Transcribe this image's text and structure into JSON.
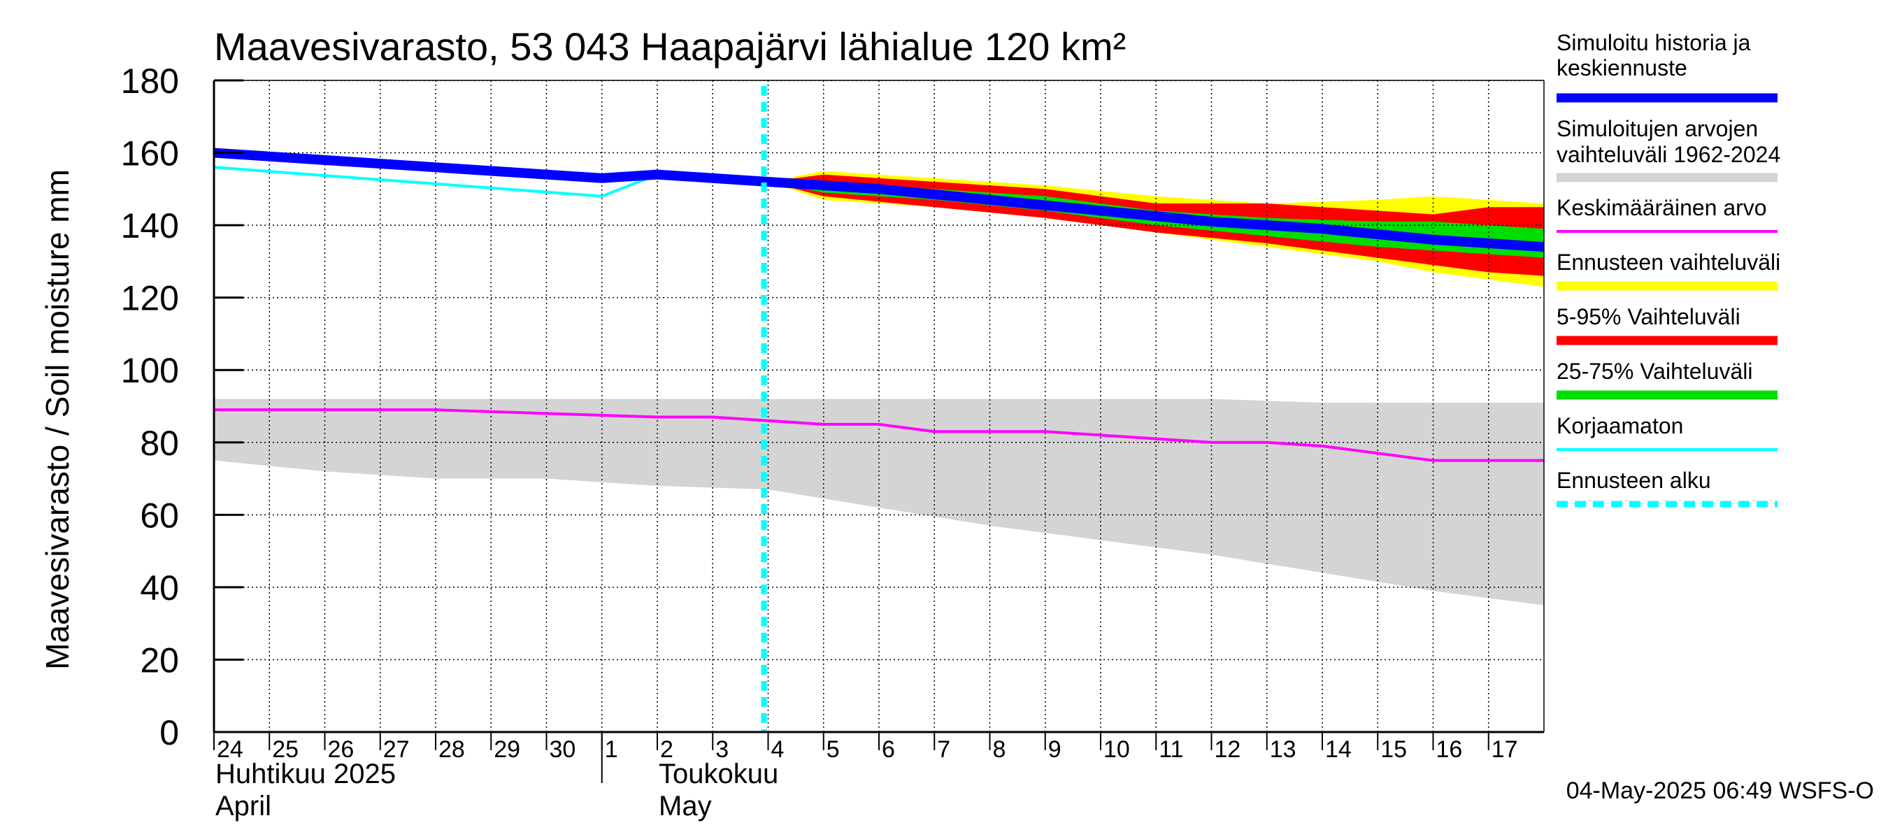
{
  "chart_data": {
    "type": "area",
    "title": "Maavesivarasto, 53 043 Haapajärvi lähialue 120 km²",
    "ylabel": "Maavesivarasto / Soil moisture   mm",
    "ylim": [
      0,
      180
    ],
    "yticks": [
      0,
      20,
      40,
      60,
      80,
      100,
      120,
      140,
      160,
      180
    ],
    "grid": true,
    "legend_position": "right",
    "x_start": "2025-04-24",
    "x_end": "2025-05-18",
    "day_ticks": [
      {
        "date": "2025-04-24",
        "label": "24"
      },
      {
        "date": "2025-04-25",
        "label": "25"
      },
      {
        "date": "2025-04-26",
        "label": "26"
      },
      {
        "date": "2025-04-27",
        "label": "27"
      },
      {
        "date": "2025-04-28",
        "label": "28"
      },
      {
        "date": "2025-04-29",
        "label": "29"
      },
      {
        "date": "2025-04-30",
        "label": "30"
      },
      {
        "date": "2025-05-01",
        "label": "1"
      },
      {
        "date": "2025-05-02",
        "label": "2"
      },
      {
        "date": "2025-05-03",
        "label": "3"
      },
      {
        "date": "2025-05-04",
        "label": "4"
      },
      {
        "date": "2025-05-05",
        "label": "5"
      },
      {
        "date": "2025-05-06",
        "label": "6"
      },
      {
        "date": "2025-05-07",
        "label": "7"
      },
      {
        "date": "2025-05-08",
        "label": "8"
      },
      {
        "date": "2025-05-09",
        "label": "9"
      },
      {
        "date": "2025-05-10",
        "label": "10"
      },
      {
        "date": "2025-05-11",
        "label": "11"
      },
      {
        "date": "2025-05-12",
        "label": "12"
      },
      {
        "date": "2025-05-13",
        "label": "13"
      },
      {
        "date": "2025-05-14",
        "label": "14"
      },
      {
        "date": "2025-05-15",
        "label": "15"
      },
      {
        "date": "2025-05-16",
        "label": "16"
      },
      {
        "date": "2025-05-17",
        "label": "17"
      }
    ],
    "month_labels": [
      {
        "date": "2025-04-24",
        "fi": "Huhtikuu  2025",
        "en": "April"
      },
      {
        "date": "2025-05-02",
        "fi": "Toukokuu",
        "en": "May"
      }
    ],
    "month_divider": "2025-05-01",
    "forecast_start": "2025-05-04",
    "series": [
      {
        "name": "Simuloitujen arvojen vaihteluväli 1962-2024",
        "kind": "band",
        "color": "#d4d4d4",
        "x": [
          "2025-04-24",
          "2025-04-26",
          "2025-04-28",
          "2025-04-30",
          "2025-05-02",
          "2025-05-04",
          "2025-05-06",
          "2025-05-08",
          "2025-05-10",
          "2025-05-12",
          "2025-05-14",
          "2025-05-16",
          "2025-05-18"
        ],
        "upper": [
          92,
          92,
          92,
          92,
          92,
          92,
          92,
          92,
          92,
          92,
          91,
          91,
          91
        ],
        "lower": [
          75,
          72,
          70,
          70,
          68,
          67,
          62,
          57,
          53,
          49,
          44,
          39,
          35
        ]
      },
      {
        "name": "Ennusteen vaihteluväli",
        "kind": "band",
        "color": "#ffff00",
        "x": [
          "2025-05-04",
          "2025-05-05",
          "2025-05-07",
          "2025-05-09",
          "2025-05-11",
          "2025-05-13",
          "2025-05-15",
          "2025-05-16",
          "2025-05-17",
          "2025-05-18"
        ],
        "upper": [
          152,
          155,
          153,
          151,
          148,
          146,
          147,
          148,
          147,
          146
        ],
        "lower": [
          152,
          147,
          145,
          142,
          138,
          134,
          130,
          127,
          125,
          123
        ]
      },
      {
        "name": "5-95% Vaihteluväli",
        "kind": "band",
        "color": "#ff0000",
        "x": [
          "2025-05-04",
          "2025-05-05",
          "2025-05-07",
          "2025-05-09",
          "2025-05-11",
          "2025-05-13",
          "2025-05-15",
          "2025-05-16",
          "2025-05-17",
          "2025-05-18"
        ],
        "upper": [
          152,
          154,
          152,
          150,
          146,
          146,
          144,
          143,
          145,
          145
        ],
        "lower": [
          152,
          148,
          145,
          142,
          138,
          135,
          131,
          129,
          127,
          126
        ]
      },
      {
        "name": "25-75% Vaihteluväli",
        "kind": "band",
        "color": "#00dd00",
        "x": [
          "2025-05-04",
          "2025-05-05",
          "2025-05-07",
          "2025-05-09",
          "2025-05-11",
          "2025-05-13",
          "2025-05-15",
          "2025-05-16",
          "2025-05-17",
          "2025-05-18"
        ],
        "upper": [
          152,
          152,
          150,
          148,
          144,
          142,
          141,
          141,
          140,
          139
        ],
        "lower": [
          152,
          149,
          147,
          144,
          140,
          137,
          134,
          133,
          132,
          131
        ]
      },
      {
        "name": "Keskimääräinen arvo",
        "kind": "line",
        "color": "#ff00ff",
        "x": [
          "2025-04-24",
          "2025-04-26",
          "2025-04-28",
          "2025-04-30",
          "2025-05-02",
          "2025-05-03",
          "2025-05-05",
          "2025-05-06",
          "2025-05-07",
          "2025-05-08",
          "2025-05-09",
          "2025-05-10",
          "2025-05-11",
          "2025-05-12",
          "2025-05-13",
          "2025-05-14",
          "2025-05-15",
          "2025-05-16",
          "2025-05-17",
          "2025-05-18"
        ],
        "y": [
          89,
          89,
          89,
          88,
          87,
          87,
          85,
          85,
          83,
          83,
          83,
          82,
          81,
          80,
          80,
          79,
          77,
          75,
          75,
          75
        ]
      },
      {
        "name": "Korjaamaton",
        "kind": "line",
        "color": "#00ffff",
        "x": [
          "2025-04-24",
          "2025-05-01",
          "2025-05-02",
          "2025-05-04"
        ],
        "y": [
          156,
          148,
          154,
          152
        ]
      },
      {
        "name": "Simuloitu historia ja keskiennuste",
        "kind": "line",
        "color": "#0000ff",
        "x": [
          "2025-04-24",
          "2025-05-01",
          "2025-05-02",
          "2025-05-04",
          "2025-05-06",
          "2025-05-08",
          "2025-05-10",
          "2025-05-12",
          "2025-05-14",
          "2025-05-16",
          "2025-05-18"
        ],
        "y": [
          160,
          153,
          154,
          152,
          150,
          147,
          144,
          141,
          139,
          136,
          134
        ]
      }
    ],
    "legend": [
      {
        "label": "Simuloitu historia ja\nkeskiennuste",
        "color": "#0000ff",
        "style": "thick"
      },
      {
        "label": "Simuloitujen arvojen\nvaihteluväli 1962-2024",
        "color": "#d4d4d4",
        "style": "thick"
      },
      {
        "label": "Keskimääräinen arvo",
        "color": "#ff00ff",
        "style": "thin"
      },
      {
        "label": "Ennusteen vaihteluväli",
        "color": "#ffff00",
        "style": "thick"
      },
      {
        "label": "5-95% Vaihteluväli",
        "color": "#ff0000",
        "style": "thick"
      },
      {
        "label": "25-75% Vaihteluväli",
        "color": "#00dd00",
        "style": "thick"
      },
      {
        "label": "Korjaamaton",
        "color": "#00ffff",
        "style": "thin"
      },
      {
        "label": "Ennusteen alku",
        "color": "#00ffff",
        "style": "dashed"
      }
    ],
    "timestamp": "04-May-2025 06:49 WSFS-O"
  }
}
